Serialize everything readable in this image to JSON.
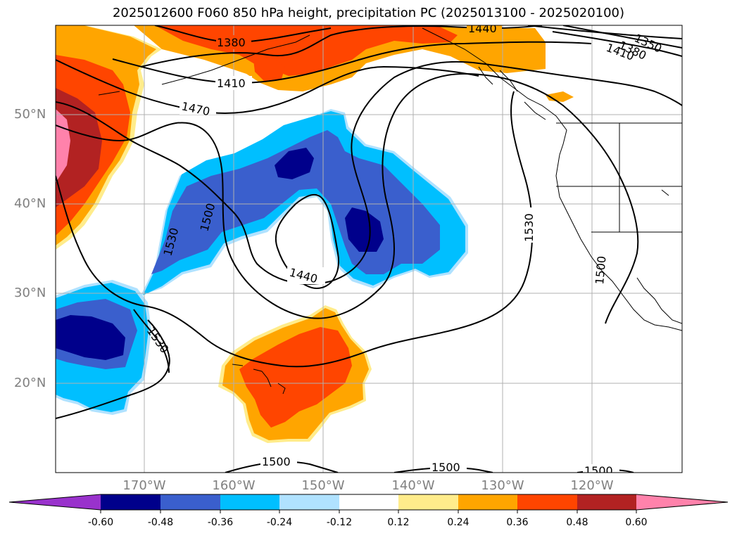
{
  "title": "2025012600 F060 850 hPa height, precipitation PC (2025013100 - 2025020100)",
  "lat_labels": [
    "50°N",
    "40°N",
    "30°N",
    "20°N"
  ],
  "lon_labels": [
    "170°W",
    "160°W",
    "150°W",
    "140°W",
    "130°W",
    "120°W"
  ],
  "contour_labels": [
    "1380",
    "1440",
    "1350",
    "1380",
    "1410",
    "1410",
    "1470",
    "1500",
    "1530",
    "1440",
    "1530",
    "1530",
    "1500",
    "1500",
    "1500",
    "1500"
  ],
  "colorbar": {
    "ticks": [
      "-0.60",
      "-0.48",
      "-0.36",
      "-0.24",
      "-0.12",
      "0.12",
      "0.24",
      "0.36",
      "0.48",
      "0.60"
    ],
    "colors": [
      "#9932cc",
      "#00008b",
      "#3a5fcd",
      "#00bfff",
      "#b0e2ff",
      "#ffffff",
      "#ffec8b",
      "#ffa500",
      "#ff4500",
      "#b22222",
      "#ff82ab"
    ]
  }
}
